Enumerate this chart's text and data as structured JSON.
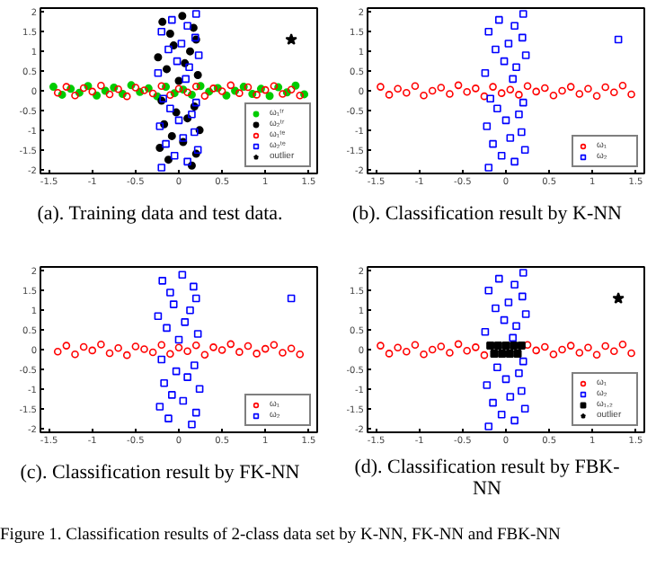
{
  "chart_data": [
    {
      "type": "scatter",
      "title": "(a). Training data and test data.",
      "xlim": [
        -1.6,
        1.6
      ],
      "ylim": [
        -2.1,
        2.1
      ],
      "xticks": [
        -1.5,
        -1,
        -0.5,
        0,
        0.5,
        1,
        1.5
      ],
      "yticks": [
        -2,
        -1.5,
        -1,
        -0.5,
        0,
        0.5,
        1,
        1.5,
        2
      ],
      "grid": false,
      "legend": "bottom right",
      "series": [
        {
          "name": "ω₁ᵗʳ",
          "color": "#00cc00",
          "marker": "circle",
          "x": [
            -1.45,
            -1.35,
            -1.25,
            -1.15,
            -1.05,
            -0.95,
            -0.85,
            -0.75,
            -0.65,
            -0.55,
            -0.45,
            -0.35,
            -0.25,
            -0.15,
            -0.05,
            0.05,
            0.15,
            0.25,
            0.35,
            0.45,
            0.55,
            0.65,
            0.75,
            0.85,
            0.95,
            1.05,
            1.15,
            1.25,
            1.35,
            1.45
          ],
          "values": [
            0.1,
            -0.1,
            0.05,
            -0.05,
            0.12,
            -0.12,
            0.0,
            0.08,
            -0.08,
            0.14,
            -0.03,
            0.06,
            -0.14,
            0.1,
            -0.06,
            0.03,
            -0.1,
            0.12,
            -0.02,
            0.07,
            -0.12,
            0.0,
            0.1,
            -0.08,
            0.05,
            -0.13,
            0.09,
            -0.04,
            0.13,
            -0.09
          ]
        },
        {
          "name": "ω₂ᵗʳ",
          "color": "#000000",
          "marker": "circle",
          "x": [
            0.15,
            -0.12,
            0.2,
            -0.22,
            0.05,
            -0.08,
            0.24,
            -0.17,
            0.1,
            -0.03,
            0.18,
            -0.2,
            0.0,
            0.22,
            -0.14,
            0.07,
            -0.24,
            0.13,
            -0.06,
            0.2,
            -0.1,
            0.17,
            -0.19,
            0.04
          ],
          "values": [
            -1.9,
            -1.75,
            -1.6,
            -1.45,
            -1.3,
            -1.15,
            -1.0,
            -0.85,
            -0.7,
            -0.55,
            -0.4,
            -0.25,
            0.25,
            0.4,
            0.55,
            0.7,
            0.85,
            1.0,
            1.15,
            1.3,
            1.45,
            1.6,
            1.75,
            1.9
          ]
        },
        {
          "name": "ω₁ᵗᵉ",
          "color": "#ff0000",
          "marker": "circle",
          "x": [
            -1.4,
            -1.3,
            -1.2,
            -1.1,
            -1.0,
            -0.9,
            -0.8,
            -0.7,
            -0.6,
            -0.5,
            -0.4,
            -0.3,
            -0.2,
            -0.1,
            0.0,
            0.1,
            0.2,
            0.3,
            0.4,
            0.5,
            0.6,
            0.7,
            0.8,
            0.9,
            1.0,
            1.1,
            1.2,
            1.3,
            1.4
          ],
          "values": [
            -0.05,
            0.1,
            -0.12,
            0.07,
            -0.02,
            0.13,
            -0.09,
            0.04,
            -0.14,
            0.08,
            0.01,
            -0.07,
            0.12,
            -0.11,
            0.05,
            -0.04,
            0.11,
            -0.13,
            0.06,
            -0.01,
            0.14,
            -0.06,
            0.09,
            -0.1,
            0.02,
            0.12,
            -0.08,
            0.03,
            -0.12
          ]
        },
        {
          "name": "ω₂ᵗᵉ",
          "color": "#0000ff",
          "marker": "square",
          "x": [
            -0.2,
            0.1,
            -0.05,
            0.22,
            -0.15,
            0.05,
            0.18,
            -0.22,
            0.0,
            0.15,
            -0.1,
            0.2,
            -0.18,
            0.08,
            -0.24,
            0.12,
            -0.02,
            0.23,
            -0.12,
            0.03,
            0.19,
            -0.2,
            0.1,
            -0.08,
            0.2
          ],
          "values": [
            -1.95,
            -1.8,
            -1.65,
            -1.5,
            -1.35,
            -1.2,
            -1.05,
            -0.9,
            -0.75,
            -0.6,
            -0.45,
            -0.3,
            -0.2,
            0.3,
            0.45,
            0.6,
            0.75,
            0.9,
            1.05,
            1.2,
            1.35,
            1.5,
            1.65,
            1.8,
            1.95
          ]
        },
        {
          "name": "outlier",
          "color": "#000000",
          "marker": "star",
          "x": [
            1.3
          ],
          "values": [
            1.3
          ]
        }
      ]
    },
    {
      "type": "scatter",
      "title": "(b). Classification result by K-NN",
      "xlim": [
        -1.6,
        1.6
      ],
      "ylim": [
        -2.1,
        2.1
      ],
      "xticks": [
        -1.5,
        -1,
        -0.5,
        0,
        0.5,
        1,
        1.5
      ],
      "yticks": [
        -2,
        -1.5,
        -1,
        -0.5,
        0,
        0.5,
        1,
        1.5,
        2
      ],
      "grid": false,
      "legend": "bottom right",
      "series": [
        {
          "name": "ω₁",
          "color": "#ff0000",
          "marker": "circle",
          "x": [
            -1.45,
            -1.35,
            -1.25,
            -1.15,
            -1.05,
            -0.95,
            -0.85,
            -0.75,
            -0.65,
            -0.55,
            -0.45,
            -0.35,
            -0.25,
            -0.15,
            -0.05,
            0.05,
            0.15,
            0.25,
            0.35,
            0.45,
            0.55,
            0.65,
            0.75,
            0.85,
            0.95,
            1.05,
            1.15,
            1.25,
            1.35,
            1.45
          ],
          "values": [
            0.1,
            -0.1,
            0.05,
            -0.05,
            0.12,
            -0.12,
            0.0,
            0.08,
            -0.08,
            0.14,
            -0.03,
            0.06,
            -0.14,
            0.1,
            -0.06,
            0.03,
            -0.1,
            0.12,
            -0.02,
            0.07,
            -0.12,
            0.0,
            0.1,
            -0.08,
            0.05,
            -0.13,
            0.09,
            -0.04,
            0.13,
            -0.09
          ]
        },
        {
          "name": "ω₂",
          "color": "#0000ff",
          "marker": "square",
          "x": [
            -0.2,
            0.1,
            -0.05,
            0.22,
            -0.15,
            0.05,
            0.18,
            -0.22,
            0.0,
            0.15,
            -0.1,
            0.2,
            -0.18,
            0.08,
            -0.24,
            0.12,
            -0.02,
            0.23,
            -0.12,
            0.03,
            0.19,
            -0.2,
            0.1,
            -0.08,
            0.2,
            1.3
          ],
          "values": [
            -1.95,
            -1.8,
            -1.65,
            -1.5,
            -1.35,
            -1.2,
            -1.05,
            -0.9,
            -0.75,
            -0.6,
            -0.45,
            -0.3,
            -0.2,
            0.3,
            0.45,
            0.6,
            0.75,
            0.9,
            1.05,
            1.2,
            1.35,
            1.5,
            1.65,
            1.8,
            1.95,
            1.3
          ]
        }
      ]
    },
    {
      "type": "scatter",
      "title": "(c). Classification result by FK-NN",
      "xlim": [
        -1.6,
        1.6
      ],
      "ylim": [
        -2.1,
        2.1
      ],
      "xticks": [
        -1.5,
        -1,
        -0.5,
        0,
        0.5,
        1,
        1.5
      ],
      "yticks": [
        -2,
        -1.5,
        -1,
        -0.5,
        0,
        0.5,
        1,
        1.5,
        2
      ],
      "grid": false,
      "legend": "bottom right",
      "series": [
        {
          "name": "ω₁",
          "color": "#ff0000",
          "marker": "circle",
          "x": [
            -1.4,
            -1.3,
            -1.2,
            -1.1,
            -1.0,
            -0.9,
            -0.8,
            -0.7,
            -0.6,
            -0.5,
            -0.4,
            -0.3,
            -0.2,
            -0.1,
            0.0,
            0.1,
            0.2,
            0.3,
            0.4,
            0.5,
            0.6,
            0.7,
            0.8,
            0.9,
            1.0,
            1.1,
            1.2,
            1.3,
            1.4
          ],
          "values": [
            -0.05,
            0.1,
            -0.12,
            0.07,
            -0.02,
            0.13,
            -0.09,
            0.04,
            -0.14,
            0.08,
            0.01,
            -0.07,
            0.12,
            -0.11,
            0.05,
            -0.04,
            0.11,
            -0.13,
            0.06,
            -0.01,
            0.14,
            -0.06,
            0.09,
            -0.1,
            0.02,
            0.12,
            -0.08,
            0.03,
            -0.12
          ]
        },
        {
          "name": "ω₂",
          "color": "#0000ff",
          "marker": "square",
          "x": [
            0.15,
            -0.12,
            0.2,
            -0.22,
            0.05,
            -0.08,
            0.24,
            -0.17,
            0.1,
            -0.03,
            0.18,
            -0.2,
            0.0,
            0.22,
            -0.14,
            0.07,
            -0.24,
            0.13,
            -0.06,
            0.2,
            -0.1,
            0.17,
            -0.19,
            0.04,
            1.3
          ],
          "values": [
            -1.9,
            -1.75,
            -1.6,
            -1.45,
            -1.3,
            -1.15,
            -1.0,
            -0.85,
            -0.7,
            -0.55,
            -0.4,
            -0.25,
            0.25,
            0.4,
            0.55,
            0.7,
            0.85,
            1.0,
            1.15,
            1.3,
            1.45,
            1.6,
            1.75,
            1.9,
            1.3
          ]
        }
      ]
    },
    {
      "type": "scatter",
      "title": "(d). Classification result by FBK-NN",
      "xlim": [
        -1.6,
        1.6
      ],
      "ylim": [
        -2.1,
        2.1
      ],
      "xticks": [
        -1.5,
        -1,
        -0.5,
        0,
        0.5,
        1,
        1.5
      ],
      "yticks": [
        -2,
        -1.5,
        -1,
        -0.5,
        0,
        0.5,
        1,
        1.5,
        2
      ],
      "grid": false,
      "legend": "bottom right",
      "series": [
        {
          "name": "ω₁",
          "color": "#ff0000",
          "marker": "circle",
          "x": [
            -1.45,
            -1.35,
            -1.25,
            -1.15,
            -1.05,
            -0.95,
            -0.85,
            -0.75,
            -0.65,
            -0.55,
            -0.45,
            -0.35,
            -0.25,
            0.25,
            0.35,
            0.45,
            0.55,
            0.65,
            0.75,
            0.85,
            0.95,
            1.05,
            1.15,
            1.25,
            1.35,
            1.45
          ],
          "values": [
            0.1,
            -0.1,
            0.05,
            -0.05,
            0.12,
            -0.12,
            0.0,
            0.08,
            -0.08,
            0.14,
            -0.03,
            0.06,
            -0.14,
            0.12,
            -0.02,
            0.07,
            -0.12,
            0.0,
            0.1,
            -0.08,
            0.05,
            -0.13,
            0.09,
            -0.04,
            0.13,
            -0.09
          ]
        },
        {
          "name": "ω₂",
          "color": "#0000ff",
          "marker": "square",
          "x": [
            -0.2,
            0.1,
            -0.05,
            0.22,
            -0.15,
            0.05,
            0.18,
            -0.22,
            0.0,
            0.15,
            -0.1,
            0.2,
            0.08,
            -0.24,
            0.12,
            -0.02,
            0.23,
            -0.12,
            0.03,
            0.19,
            -0.2,
            0.1,
            -0.08,
            0.2
          ],
          "values": [
            -1.95,
            -1.8,
            -1.65,
            -1.5,
            -1.35,
            -1.2,
            -1.05,
            -0.9,
            -0.75,
            -0.6,
            -0.45,
            -0.3,
            0.3,
            0.45,
            0.6,
            0.75,
            0.9,
            1.05,
            1.2,
            1.35,
            1.5,
            1.65,
            1.8,
            1.95
          ]
        },
        {
          "name": "ω₁,₂",
          "color": "#000000",
          "marker": "square",
          "x": [
            -0.18,
            -0.09,
            0.0,
            0.09,
            0.18,
            -0.135,
            -0.045,
            0.045,
            0.135
          ],
          "values": [
            0.1,
            0.1,
            0.1,
            0.1,
            0.1,
            -0.1,
            -0.1,
            -0.1,
            -0.1
          ]
        },
        {
          "name": "outlier",
          "color": "#000000",
          "marker": "star",
          "x": [
            1.3
          ],
          "values": [
            1.3
          ]
        }
      ]
    },
    {
      "type": "other",
      "annotations": [
        "Figure 1.   Classification results of 2-class data set by K-NN, FK-NN and FBK-NN"
      ]
    }
  ]
}
